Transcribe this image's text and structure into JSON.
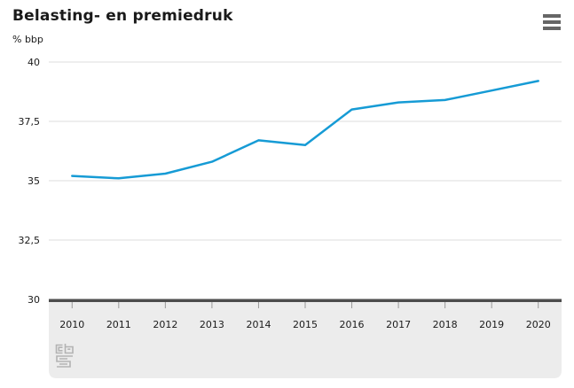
{
  "header": {
    "title": "Belasting- en premiedruk",
    "unit_label": "% bbp",
    "menu_icon": "hamburger-menu-icon"
  },
  "chart_data": {
    "type": "line",
    "title": "Belasting- en premiedruk",
    "ylabel": "% bbp",
    "xlabel": "",
    "categories": [
      "2010",
      "2011",
      "2012",
      "2013",
      "2014",
      "2015",
      "2016",
      "2017",
      "2018",
      "2019",
      "2020"
    ],
    "series": [
      {
        "name": "Belasting- en premiedruk",
        "values": [
          35.2,
          35.1,
          35.3,
          35.8,
          36.7,
          36.5,
          38.0,
          38.3,
          38.4,
          38.8,
          39.2
        ]
      }
    ],
    "ylim": [
      30,
      40
    ],
    "yticks": {
      "values": [
        30,
        32.5,
        35,
        37.5,
        40
      ],
      "labels": [
        "30",
        "32,5",
        "35",
        "37,5",
        "40"
      ]
    },
    "grid": "horizontal",
    "legend_position": "none",
    "colors": {
      "line": "#169bd5",
      "gridline": "#e8e8e8",
      "axis": "#4d4d4d",
      "footer_background": "#ececec",
      "tick": "#999999",
      "text": "#1a1a1a",
      "logo": "#b3b3b3"
    }
  },
  "footer": {
    "logo": "cbs-logo"
  }
}
